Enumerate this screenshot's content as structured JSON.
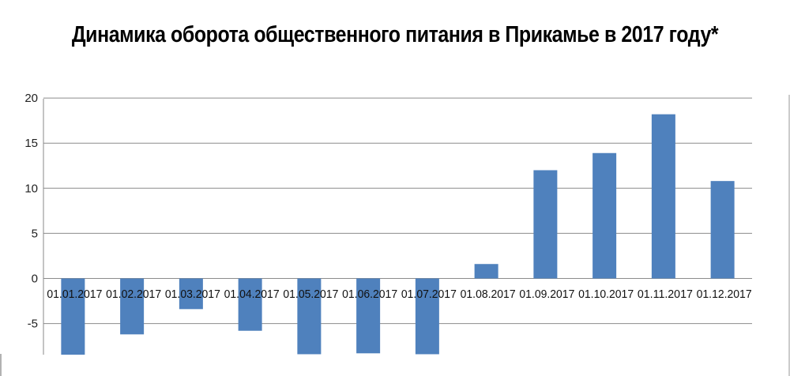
{
  "chart_data": {
    "type": "bar",
    "title": "Динамика оборота общественного питания в Прикамье в 2017 году*",
    "xlabel": "",
    "ylabel": "",
    "ylim": [
      -8.5,
      20
    ],
    "yticks": [
      20,
      15,
      10,
      5,
      0,
      -5
    ],
    "grid": true,
    "legend": null,
    "bar_color": "#4f81bd",
    "categories": [
      "01.01.2017",
      "01.02.2017",
      "01.03.2017",
      "01.04.2017",
      "01.05.2017",
      "01.06.2017",
      "01.07.2017",
      "01.08.2017",
      "01.09.2017",
      "01.10.2017",
      "01.11.2017",
      "01.12.2017"
    ],
    "values": [
      -8.5,
      -6.2,
      -3.4,
      -5.8,
      -8.4,
      -8.3,
      -8.4,
      1.6,
      12.0,
      13.9,
      18.2,
      10.8
    ]
  }
}
